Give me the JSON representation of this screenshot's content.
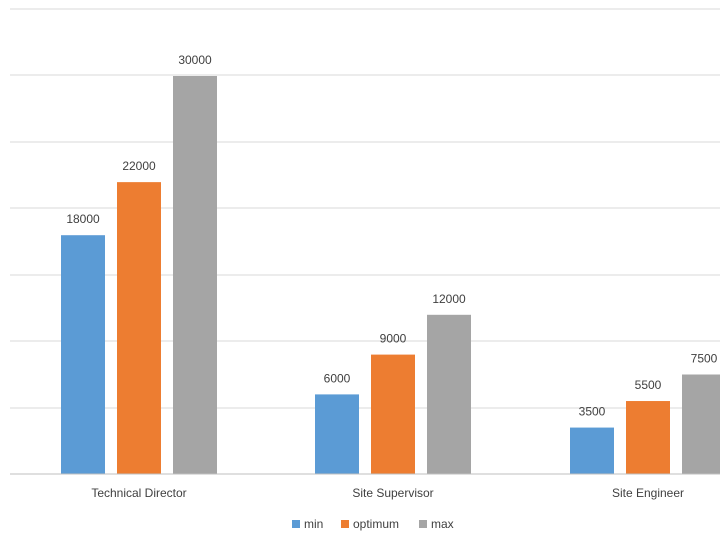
{
  "chart_data": {
    "type": "bar",
    "categories": [
      "Technical Director",
      "Site Supervisor",
      "Site Engineer"
    ],
    "series": [
      {
        "name": "min",
        "values": [
          18000,
          6000,
          3500
        ],
        "color": "#5b9bd5"
      },
      {
        "name": "optimum",
        "values": [
          22000,
          9000,
          5500
        ],
        "color": "#ed7d31"
      },
      {
        "name": "max",
        "values": [
          30000,
          12000,
          7500
        ],
        "color": "#a5a5a5"
      }
    ],
    "title": "",
    "xlabel": "",
    "ylabel": "",
    "grid": true,
    "legend": "bottom"
  }
}
